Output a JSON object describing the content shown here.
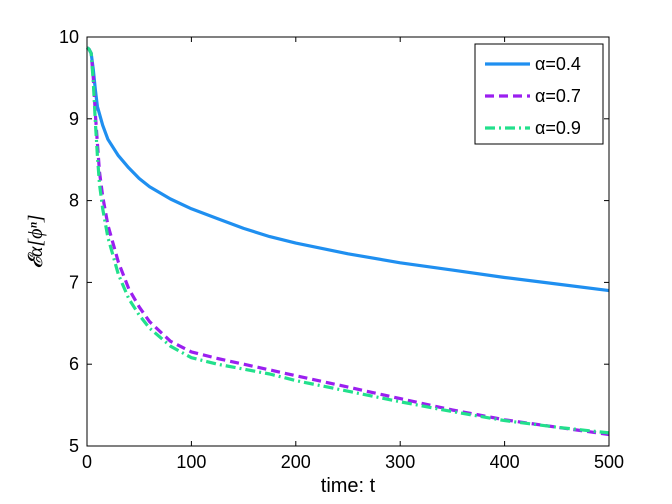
{
  "chart_data": {
    "type": "line",
    "xlabel": "time: t",
    "ylabel": "𝓔α[ϕⁿ]",
    "xlim": [
      0,
      500
    ],
    "ylim": [
      5,
      10
    ],
    "xticks": [
      0,
      100,
      200,
      300,
      400,
      500
    ],
    "yticks": [
      5,
      6,
      7,
      8,
      9,
      10
    ],
    "grid": false,
    "legend": "top-right",
    "series": [
      {
        "name": "α=0.4",
        "color": "#1f8ff0",
        "style": "solid",
        "x": [
          0,
          2,
          4,
          6,
          8,
          10,
          15,
          20,
          30,
          40,
          50,
          60,
          80,
          100,
          125,
          150,
          175,
          200,
          250,
          300,
          350,
          400,
          450,
          500
        ],
        "y": [
          9.87,
          9.85,
          9.8,
          9.6,
          9.35,
          9.15,
          8.92,
          8.75,
          8.55,
          8.4,
          8.27,
          8.17,
          8.02,
          7.9,
          7.78,
          7.66,
          7.56,
          7.48,
          7.35,
          7.24,
          7.15,
          7.06,
          6.98,
          6.9
        ]
      },
      {
        "name": "α=0.7",
        "color": "#9b1ff0",
        "style": "dashed",
        "x": [
          0,
          2,
          4,
          6,
          8,
          10,
          12,
          15,
          20,
          30,
          40,
          50,
          60,
          80,
          100,
          125,
          150,
          175,
          200,
          250,
          300,
          350,
          400,
          450,
          500
        ],
        "y": [
          9.87,
          9.85,
          9.8,
          9.5,
          9.05,
          8.7,
          8.35,
          8.05,
          7.7,
          7.25,
          6.92,
          6.7,
          6.52,
          6.28,
          6.15,
          6.07,
          6.0,
          5.93,
          5.86,
          5.72,
          5.58,
          5.44,
          5.32,
          5.23,
          5.14
        ]
      },
      {
        "name": "α=0.9",
        "color": "#22e08c",
        "style": "dashdot",
        "x": [
          0,
          2,
          4,
          6,
          8,
          10,
          12,
          15,
          20,
          30,
          40,
          50,
          60,
          80,
          100,
          125,
          150,
          175,
          200,
          250,
          300,
          350,
          400,
          450,
          500
        ],
        "y": [
          9.87,
          9.85,
          9.8,
          9.45,
          8.95,
          8.55,
          8.2,
          7.9,
          7.55,
          7.1,
          6.8,
          6.6,
          6.44,
          6.22,
          6.08,
          6.0,
          5.94,
          5.88,
          5.8,
          5.67,
          5.54,
          5.42,
          5.31,
          5.23,
          5.16
        ]
      }
    ]
  }
}
